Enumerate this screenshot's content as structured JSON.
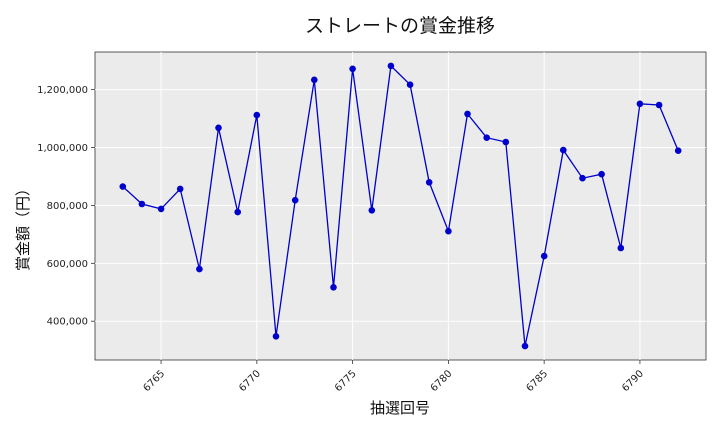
{
  "chart_data": {
    "type": "line",
    "title": "ストレートの賞金推移",
    "xlabel": "抽選回号",
    "ylabel": "賞金額（円）",
    "x": [
      6763,
      6764,
      6765,
      6766,
      6767,
      6768,
      6769,
      6770,
      6771,
      6772,
      6773,
      6774,
      6775,
      6776,
      6777,
      6778,
      6779,
      6780,
      6781,
      6782,
      6783,
      6784,
      6785,
      6786,
      6787,
      6788,
      6789,
      6790,
      6791,
      6792
    ],
    "series": [
      {
        "values": [
          865000,
          805000,
          788000,
          857000,
          580000,
          1068000,
          777000,
          1112000,
          348000,
          818000,
          1234000,
          517000,
          1272000,
          783000,
          1282000,
          1217000,
          880000,
          711000,
          1116000,
          1034000,
          1019000,
          314000,
          625000,
          991000,
          894000,
          908000,
          653000,
          1151000,
          1147000,
          989000
        ],
        "color": "#0000cc"
      }
    ],
    "xticks": [
      "6765",
      "6770",
      "6775",
      "6780",
      "6785",
      "6790"
    ],
    "yticks": [
      "400,000",
      "600,000",
      "800,000",
      "1,000,000",
      "1,200,000"
    ],
    "xlim": [
      6761.55,
      6793.45
    ],
    "ylim": [
      266000,
      1330000
    ],
    "grid": true,
    "background": "#ebebeb"
  }
}
